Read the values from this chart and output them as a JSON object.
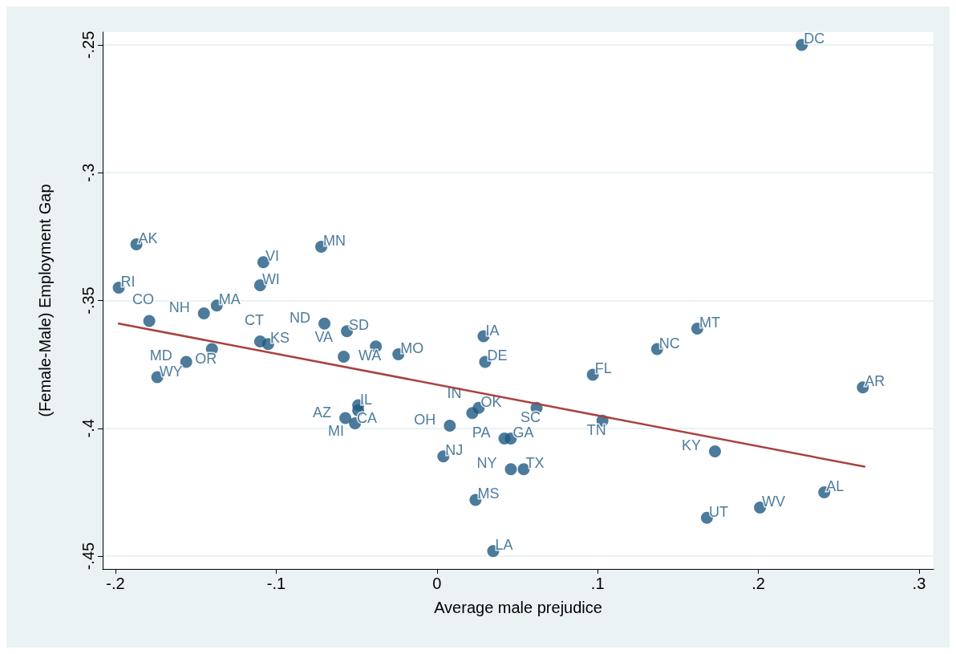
{
  "chart_data": {
    "type": "scatter",
    "xlabel": "Average male prejudice",
    "ylabel": "(Female-Male) Employment Gap",
    "xlim": [
      -0.208,
      0.309
    ],
    "ylim": [
      -0.455,
      -0.245
    ],
    "xticks": [
      {
        "value": -0.2,
        "label": "-.2"
      },
      {
        "value": -0.1,
        "label": "-.1"
      },
      {
        "value": 0,
        "label": "0"
      },
      {
        "value": 0.1,
        "label": ".1"
      },
      {
        "value": 0.2,
        "label": ".2"
      },
      {
        "value": 0.3,
        "label": ".3"
      }
    ],
    "yticks": [
      {
        "value": -0.45,
        "label": "-.45"
      },
      {
        "value": -0.4,
        "label": "-.4"
      },
      {
        "value": -0.35,
        "label": "-.35"
      },
      {
        "value": -0.3,
        "label": "-.3"
      },
      {
        "value": -0.25,
        "label": "-.25"
      }
    ],
    "grid": "y",
    "marker": "circle",
    "series": [
      {
        "type": "scatter",
        "color": "#1f5a82",
        "x": [
          0.227,
          -0.187,
          -0.198,
          -0.072,
          -0.108,
          -0.11,
          -0.137,
          -0.145,
          -0.179,
          -0.07,
          -0.056,
          0.029,
          0.162,
          0.137,
          -0.11,
          -0.105,
          -0.14,
          -0.156,
          -0.174,
          -0.038,
          -0.058,
          -0.024,
          0.03,
          0.097,
          0.103,
          0.062,
          0.265,
          0.173,
          0.241,
          0.201,
          0.168,
          0.035,
          0.024,
          0.004,
          0.046,
          0.054,
          0.042,
          0.046,
          0.008,
          0.022,
          0.026,
          -0.049,
          -0.049,
          -0.057,
          -0.051
        ],
        "values": [
          -0.25,
          -0.328,
          -0.345,
          -0.329,
          -0.335,
          -0.344,
          -0.352,
          -0.355,
          -0.358,
          -0.359,
          -0.362,
          -0.364,
          -0.361,
          -0.369,
          -0.366,
          -0.367,
          -0.369,
          -0.374,
          -0.38,
          -0.368,
          -0.372,
          -0.371,
          -0.374,
          -0.379,
          -0.397,
          -0.392,
          -0.384,
          -0.409,
          -0.425,
          -0.431,
          -0.435,
          -0.448,
          -0.428,
          -0.411,
          -0.416,
          -0.416,
          -0.404,
          -0.404,
          -0.399,
          -0.394,
          -0.392,
          -0.391,
          -0.393,
          -0.396,
          -0.398
        ],
        "value_labels": [
          "DC",
          "AK",
          "RI",
          "MN",
          "VI",
          "WI",
          "MA",
          "NH",
          "CO",
          "ND",
          "SD",
          "IA",
          "MT",
          "NC",
          "CT",
          "KS",
          "OR",
          "MD",
          "WY",
          "WA",
          "VA",
          "MO",
          "DE",
          "FL",
          "TN",
          "SC",
          "AR",
          "KY",
          "AL",
          "WV",
          "UT",
          "LA",
          "MS",
          "NJ",
          "NY",
          "TX",
          "PA",
          "GA",
          "OH",
          "IN",
          "OK",
          "IL",
          "CA",
          "AZ",
          "MI"
        ]
      },
      {
        "type": "line",
        "color": "#a8423f",
        "x": [
          -0.198,
          0.266
        ],
        "values": [
          -0.359,
          -0.415
        ],
        "marker": "none"
      }
    ]
  }
}
